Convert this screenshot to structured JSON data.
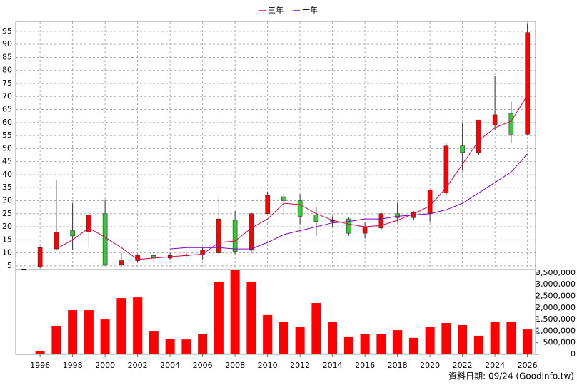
{
  "chart_data": {
    "type": "candlestick",
    "categories": [
      null,
      "1996",
      null,
      "1998",
      null,
      "2000",
      null,
      "2002",
      null,
      "2004",
      null,
      "2006",
      null,
      "2008",
      null,
      "2010",
      null,
      "2012",
      null,
      "2014",
      null,
      "2016",
      null,
      "2018",
      null,
      "2020",
      null,
      "2022",
      null,
      "2024",
      null,
      "2026"
    ],
    "open": [
      3.8,
      4.5,
      11.5,
      18.5,
      18,
      25,
      5.5,
      7,
      9,
      8,
      9,
      9.5,
      10,
      22.5,
      11,
      25,
      31.5,
      30,
      24.5,
      22.5,
      23,
      17.5,
      19.5,
      25,
      23.5,
      25,
      33,
      51,
      48.5,
      59,
      63.5,
      55.5
    ],
    "high": [
      3.8,
      12.5,
      38,
      29,
      26,
      30.5,
      10,
      9.5,
      10,
      10,
      10,
      12,
      32,
      26,
      25.5,
      33.5,
      33,
      32.5,
      27.5,
      24,
      23.5,
      21.5,
      25.5,
      29,
      26,
      34,
      52,
      60,
      61,
      78,
      68,
      98
    ],
    "low": [
      3.8,
      4,
      11,
      11,
      12,
      5,
      4.5,
      6.5,
      6.5,
      7.5,
      8.5,
      7.5,
      9.5,
      9.5,
      10,
      25,
      25,
      21,
      16.5,
      20,
      16.5,
      15.5,
      19,
      22,
      22.5,
      22,
      32,
      41.5,
      47.5,
      57,
      52,
      55
    ],
    "close": [
      3.8,
      12,
      18,
      16.5,
      24.5,
      5.5,
      7,
      9,
      8,
      9,
      9.3,
      11,
      23,
      10.5,
      25,
      32,
      30,
      24,
      22,
      22.5,
      17.5,
      20,
      25,
      23.5,
      25.5,
      34,
      51,
      48.5,
      61,
      63,
      55.5,
      94.5
    ],
    "up_color": "#ff0000",
    "down_color": "#33cc33",
    "flat_color": "#000000",
    "series": [
      {
        "name": "三年",
        "color": "#e0004a",
        "values": [
          null,
          null,
          11.5,
          15,
          19.5,
          16,
          12,
          7.5,
          8,
          8.5,
          9,
          9.5,
          14,
          14.5,
          19.5,
          23,
          29,
          28.5,
          25,
          22.5,
          21,
          20,
          20.5,
          22.5,
          25,
          28,
          35,
          44,
          53,
          58,
          60.5,
          70.5
        ]
      },
      {
        "name": "十年",
        "color": "#8000c0",
        "values": [
          null,
          null,
          null,
          null,
          null,
          null,
          null,
          null,
          null,
          11.5,
          12,
          12,
          12,
          11.5,
          11.5,
          14,
          17,
          18.5,
          20,
          21.5,
          22,
          23,
          23,
          24,
          24.5,
          25,
          26.5,
          29,
          33,
          37,
          41,
          48
        ]
      }
    ],
    "ylim": [
      3.6,
      98.8
    ],
    "yticks": [
      5,
      10,
      15,
      20,
      25,
      30,
      35,
      40,
      45,
      50,
      55,
      60,
      65,
      70,
      75,
      80,
      85,
      90,
      95
    ],
    "grid": true,
    "volume": {
      "color": "#ff0000",
      "values": [
        0,
        150000,
        1230000,
        1900000,
        1900000,
        1500000,
        2420000,
        2450000,
        1010000,
        670000,
        640000,
        860000,
        3130000,
        3620000,
        3130000,
        1690000,
        1380000,
        1170000,
        2210000,
        1380000,
        770000,
        860000,
        860000,
        1040000,
        710000,
        1170000,
        1350000,
        1260000,
        800000,
        1410000,
        1410000,
        1070000
      ],
      "ylim": [
        0,
        3650000
      ],
      "yticks": [
        0,
        {
          "value": 500000,
          "label": "500,000"
        },
        {
          "value": 1000000,
          "label": "1,000,000"
        },
        {
          "value": 1500000,
          "label": "1,500,000"
        },
        {
          "value": 2000000,
          "label": "2,000,000"
        },
        {
          "value": 2500000,
          "label": "2,500,000"
        },
        {
          "value": 3000000,
          "label": "3,000,000"
        },
        {
          "value": 3500000,
          "label": "3,500,000"
        }
      ]
    },
    "annotation": "資料日期: 09/24 (Goodinfo.tw)"
  }
}
